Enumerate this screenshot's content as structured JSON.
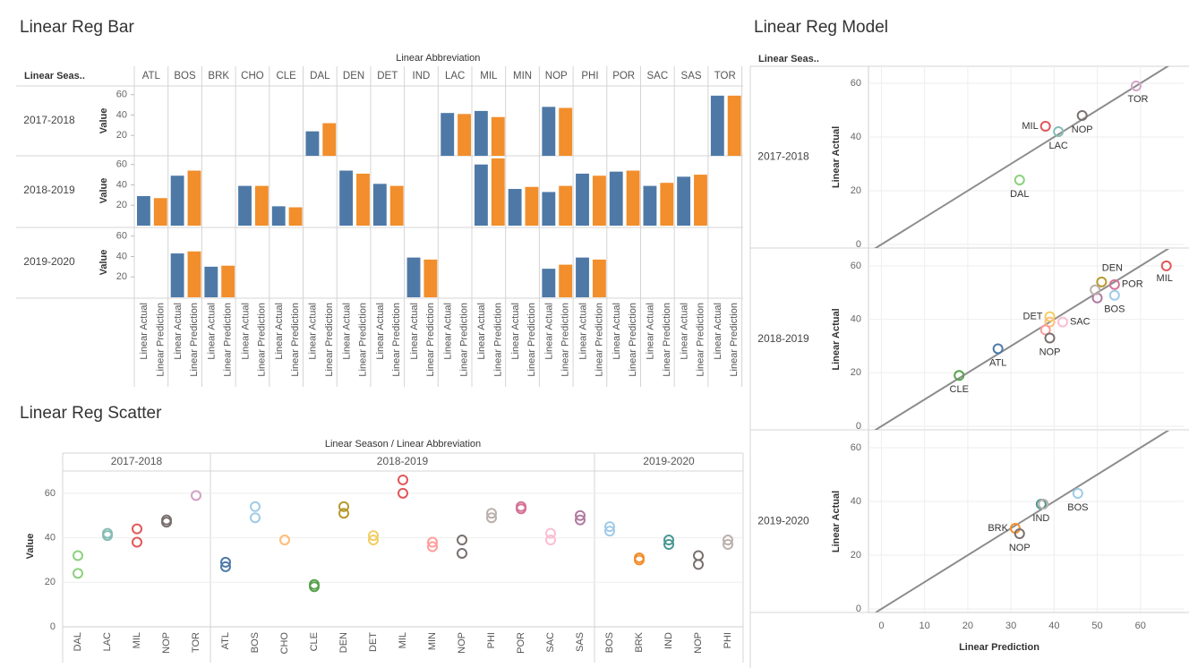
{
  "titles": {
    "bar": "Linear Reg Bar",
    "scatter": "Linear Reg Scatter",
    "model": "Linear Reg Model"
  },
  "colors": {
    "actual_bar": "#4e79a7",
    "prediction_bar": "#f28e2b",
    "trend_line": "#8c8c8c",
    "grid": "#eeeeee",
    "divider": "#d4d4d4"
  },
  "team_colors": {
    "ATL": "#4e79a7",
    "BOS": "#a0cbe8",
    "BRK": "#f28e2b",
    "CHO": "#ffbe7d",
    "CLE": "#59a14f",
    "DAL": "#8cd17d",
    "DEN": "#b6992d",
    "DET": "#f1ce63",
    "IND": "#499894",
    "LAC": "#86bcb6",
    "MIL": "#e15759",
    "MIN": "#ff9d9a",
    "NOP": "#79706e",
    "PHI": "#bab0ac",
    "POR": "#d37295",
    "SAC": "#fabfd2",
    "SAS": "#b07aa1",
    "TOR": "#d4a6c8"
  },
  "chart_data": [
    {
      "id": "bar",
      "type": "bar",
      "title": "Linear Reg Bar",
      "column_header": "Linear Abbreviation",
      "row_header": "Linear Seas..",
      "ylabel": "Value",
      "ylim": [
        0,
        65
      ],
      "yticks": [
        20,
        40,
        60
      ],
      "teams": [
        "ATL",
        "BOS",
        "BRK",
        "CHO",
        "CLE",
        "DAL",
        "DEN",
        "DET",
        "IND",
        "LAC",
        "MIL",
        "MIN",
        "NOP",
        "PHI",
        "POR",
        "SAC",
        "SAS",
        "TOR"
      ],
      "measures": [
        "Linear Actual",
        "Linear Prediction"
      ],
      "rows": [
        {
          "season": "2017-2018",
          "data": {
            "DAL": [
              24,
              32
            ],
            "LAC": [
              42,
              41
            ],
            "MIL": [
              44,
              38
            ],
            "NOP": [
              48,
              47
            ],
            "TOR": [
              59,
              59
            ]
          }
        },
        {
          "season": "2018-2019",
          "data": {
            "ATL": [
              29,
              27
            ],
            "BOS": [
              49,
              54
            ],
            "CHO": [
              39,
              39
            ],
            "CLE": [
              19,
              18
            ],
            "DEN": [
              54,
              51
            ],
            "DET": [
              41,
              39
            ],
            "MIL": [
              60,
              66
            ],
            "MIN": [
              36,
              38
            ],
            "NOP": [
              33,
              39
            ],
            "PHI": [
              51,
              49
            ],
            "POR": [
              53,
              54
            ],
            "SAC": [
              39,
              42
            ],
            "SAS": [
              48,
              50
            ]
          }
        },
        {
          "season": "2019-2020",
          "data": {
            "BOS": [
              43,
              45
            ],
            "BRK": [
              30,
              31
            ],
            "IND": [
              39,
              37
            ],
            "NOP": [
              28,
              32
            ],
            "PHI": [
              39,
              37
            ]
          }
        }
      ]
    },
    {
      "id": "scatter",
      "type": "scatter",
      "title": "Linear Reg Scatter",
      "header": "Linear Season / Linear Abbreviation",
      "ylabel": "Value",
      "ylim": [
        0,
        70
      ],
      "yticks": [
        0,
        20,
        40,
        60
      ],
      "groups": [
        {
          "season": "2017-2018",
          "points": [
            {
              "team": "DAL",
              "values": [
                24,
                32
              ]
            },
            {
              "team": "LAC",
              "values": [
                42,
                41
              ]
            },
            {
              "team": "MIL",
              "values": [
                44,
                38
              ]
            },
            {
              "team": "NOP",
              "values": [
                48,
                47
              ]
            },
            {
              "team": "TOR",
              "values": [
                59,
                59
              ]
            }
          ]
        },
        {
          "season": "2018-2019",
          "points": [
            {
              "team": "ATL",
              "values": [
                29,
                27
              ]
            },
            {
              "team": "BOS",
              "values": [
                49,
                54
              ]
            },
            {
              "team": "CHO",
              "values": [
                39,
                39
              ]
            },
            {
              "team": "CLE",
              "values": [
                19,
                18
              ]
            },
            {
              "team": "DEN",
              "values": [
                54,
                51
              ]
            },
            {
              "team": "DET",
              "values": [
                41,
                39
              ]
            },
            {
              "team": "MIL",
              "values": [
                60,
                66
              ]
            },
            {
              "team": "MIN",
              "values": [
                36,
                38
              ]
            },
            {
              "team": "NOP",
              "values": [
                33,
                39
              ]
            },
            {
              "team": "PHI",
              "values": [
                51,
                49
              ]
            },
            {
              "team": "POR",
              "values": [
                53,
                54
              ]
            },
            {
              "team": "SAC",
              "values": [
                39,
                42
              ]
            },
            {
              "team": "SAS",
              "values": [
                48,
                50
              ]
            }
          ]
        },
        {
          "season": "2019-2020",
          "points": [
            {
              "team": "BOS",
              "values": [
                43,
                45
              ]
            },
            {
              "team": "BRK",
              "values": [
                30,
                31
              ]
            },
            {
              "team": "IND",
              "values": [
                39,
                37
              ]
            },
            {
              "team": "NOP",
              "values": [
                28,
                32
              ]
            },
            {
              "team": "PHI",
              "values": [
                39,
                37
              ]
            }
          ]
        }
      ]
    },
    {
      "id": "model",
      "type": "scatter",
      "title": "Linear Reg Model",
      "row_header": "Linear Seas..",
      "xlabel": "Linear Prediction",
      "ylabel": "Linear Actual",
      "xlim": [
        -3,
        70
      ],
      "xticks": [
        0,
        10,
        20,
        30,
        40,
        50,
        60
      ],
      "ylim": [
        0,
        65
      ],
      "yticks": [
        0,
        20,
        40,
        60
      ],
      "trend": {
        "slope": 1.0,
        "intercept": 0
      },
      "panels": [
        {
          "season": "2017-2018",
          "points": [
            {
              "team": "TOR",
              "x": 59,
              "y": 59,
              "label": true
            },
            {
              "team": "MIL",
              "x": 38,
              "y": 44,
              "label": true
            },
            {
              "team": "LAC",
              "x": 41,
              "y": 42,
              "label": true
            },
            {
              "team": "NOP",
              "x": 46.5,
              "y": 48,
              "label": true
            },
            {
              "team": "DAL",
              "x": 32,
              "y": 24,
              "label": true
            }
          ]
        },
        {
          "season": "2018-2019",
          "points": [
            {
              "team": "MIL",
              "x": 66,
              "y": 60,
              "label": true
            },
            {
              "team": "DEN",
              "x": 51,
              "y": 54,
              "label": true
            },
            {
              "team": "POR",
              "x": 54,
              "y": 53,
              "label": true
            },
            {
              "team": "BOS",
              "x": 54,
              "y": 49,
              "label": true
            },
            {
              "team": "SAS",
              "x": 50,
              "y": 48,
              "label": false
            },
            {
              "team": "PHI",
              "x": 49.5,
              "y": 51,
              "label": false
            },
            {
              "team": "DET",
              "x": 39,
              "y": 41,
              "label": true
            },
            {
              "team": "CHO",
              "x": 39,
              "y": 39,
              "label": false
            },
            {
              "team": "SAC",
              "x": 42,
              "y": 39,
              "label": true
            },
            {
              "team": "MIN",
              "x": 38,
              "y": 36,
              "label": false
            },
            {
              "team": "NOP",
              "x": 39,
              "y": 33,
              "label": true
            },
            {
              "team": "ATL",
              "x": 27,
              "y": 29,
              "label": true
            },
            {
              "team": "CLE",
              "x": 18,
              "y": 19,
              "label": true
            }
          ]
        },
        {
          "season": "2019-2020",
          "points": [
            {
              "team": "BOS",
              "x": 45.5,
              "y": 43,
              "label": true
            },
            {
              "team": "IND",
              "x": 37,
              "y": 39,
              "label": true
            },
            {
              "team": "PHI",
              "x": 37.5,
              "y": 39,
              "label": false
            },
            {
              "team": "BRK",
              "x": 31,
              "y": 30,
              "label": true
            },
            {
              "team": "NOP",
              "x": 32,
              "y": 28,
              "label": true
            }
          ]
        }
      ]
    }
  ]
}
